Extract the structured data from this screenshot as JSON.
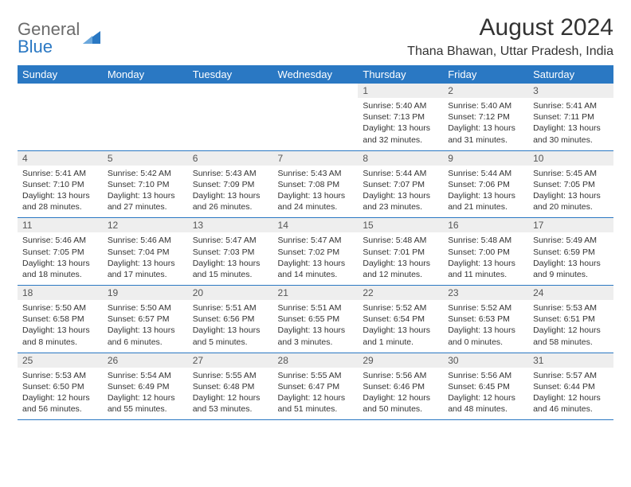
{
  "brand": {
    "part1": "General",
    "part2": "Blue"
  },
  "title": "August 2024",
  "location": "Thana Bhawan, Uttar Pradesh, India",
  "colors": {
    "accent": "#2a78c3",
    "header_text": "#ffffff",
    "daynum_bg": "#eeeeee",
    "text": "#333333",
    "logo_gray": "#6b6b6b"
  },
  "day_names": [
    "Sunday",
    "Monday",
    "Tuesday",
    "Wednesday",
    "Thursday",
    "Friday",
    "Saturday"
  ],
  "grid": [
    [
      null,
      null,
      null,
      null,
      {
        "n": "1",
        "sr": "5:40 AM",
        "ss": "7:13 PM",
        "dl": "13 hours and 32 minutes."
      },
      {
        "n": "2",
        "sr": "5:40 AM",
        "ss": "7:12 PM",
        "dl": "13 hours and 31 minutes."
      },
      {
        "n": "3",
        "sr": "5:41 AM",
        "ss": "7:11 PM",
        "dl": "13 hours and 30 minutes."
      }
    ],
    [
      {
        "n": "4",
        "sr": "5:41 AM",
        "ss": "7:10 PM",
        "dl": "13 hours and 28 minutes."
      },
      {
        "n": "5",
        "sr": "5:42 AM",
        "ss": "7:10 PM",
        "dl": "13 hours and 27 minutes."
      },
      {
        "n": "6",
        "sr": "5:43 AM",
        "ss": "7:09 PM",
        "dl": "13 hours and 26 minutes."
      },
      {
        "n": "7",
        "sr": "5:43 AM",
        "ss": "7:08 PM",
        "dl": "13 hours and 24 minutes."
      },
      {
        "n": "8",
        "sr": "5:44 AM",
        "ss": "7:07 PM",
        "dl": "13 hours and 23 minutes."
      },
      {
        "n": "9",
        "sr": "5:44 AM",
        "ss": "7:06 PM",
        "dl": "13 hours and 21 minutes."
      },
      {
        "n": "10",
        "sr": "5:45 AM",
        "ss": "7:05 PM",
        "dl": "13 hours and 20 minutes."
      }
    ],
    [
      {
        "n": "11",
        "sr": "5:46 AM",
        "ss": "7:05 PM",
        "dl": "13 hours and 18 minutes."
      },
      {
        "n": "12",
        "sr": "5:46 AM",
        "ss": "7:04 PM",
        "dl": "13 hours and 17 minutes."
      },
      {
        "n": "13",
        "sr": "5:47 AM",
        "ss": "7:03 PM",
        "dl": "13 hours and 15 minutes."
      },
      {
        "n": "14",
        "sr": "5:47 AM",
        "ss": "7:02 PM",
        "dl": "13 hours and 14 minutes."
      },
      {
        "n": "15",
        "sr": "5:48 AM",
        "ss": "7:01 PM",
        "dl": "13 hours and 12 minutes."
      },
      {
        "n": "16",
        "sr": "5:48 AM",
        "ss": "7:00 PM",
        "dl": "13 hours and 11 minutes."
      },
      {
        "n": "17",
        "sr": "5:49 AM",
        "ss": "6:59 PM",
        "dl": "13 hours and 9 minutes."
      }
    ],
    [
      {
        "n": "18",
        "sr": "5:50 AM",
        "ss": "6:58 PM",
        "dl": "13 hours and 8 minutes."
      },
      {
        "n": "19",
        "sr": "5:50 AM",
        "ss": "6:57 PM",
        "dl": "13 hours and 6 minutes."
      },
      {
        "n": "20",
        "sr": "5:51 AM",
        "ss": "6:56 PM",
        "dl": "13 hours and 5 minutes."
      },
      {
        "n": "21",
        "sr": "5:51 AM",
        "ss": "6:55 PM",
        "dl": "13 hours and 3 minutes."
      },
      {
        "n": "22",
        "sr": "5:52 AM",
        "ss": "6:54 PM",
        "dl": "13 hours and 1 minute."
      },
      {
        "n": "23",
        "sr": "5:52 AM",
        "ss": "6:53 PM",
        "dl": "13 hours and 0 minutes."
      },
      {
        "n": "24",
        "sr": "5:53 AM",
        "ss": "6:51 PM",
        "dl": "12 hours and 58 minutes."
      }
    ],
    [
      {
        "n": "25",
        "sr": "5:53 AM",
        "ss": "6:50 PM",
        "dl": "12 hours and 56 minutes."
      },
      {
        "n": "26",
        "sr": "5:54 AM",
        "ss": "6:49 PM",
        "dl": "12 hours and 55 minutes."
      },
      {
        "n": "27",
        "sr": "5:55 AM",
        "ss": "6:48 PM",
        "dl": "12 hours and 53 minutes."
      },
      {
        "n": "28",
        "sr": "5:55 AM",
        "ss": "6:47 PM",
        "dl": "12 hours and 51 minutes."
      },
      {
        "n": "29",
        "sr": "5:56 AM",
        "ss": "6:46 PM",
        "dl": "12 hours and 50 minutes."
      },
      {
        "n": "30",
        "sr": "5:56 AM",
        "ss": "6:45 PM",
        "dl": "12 hours and 48 minutes."
      },
      {
        "n": "31",
        "sr": "5:57 AM",
        "ss": "6:44 PM",
        "dl": "12 hours and 46 minutes."
      }
    ]
  ],
  "labels": {
    "sunrise": "Sunrise:",
    "sunset": "Sunset:",
    "daylight": "Daylight:"
  }
}
